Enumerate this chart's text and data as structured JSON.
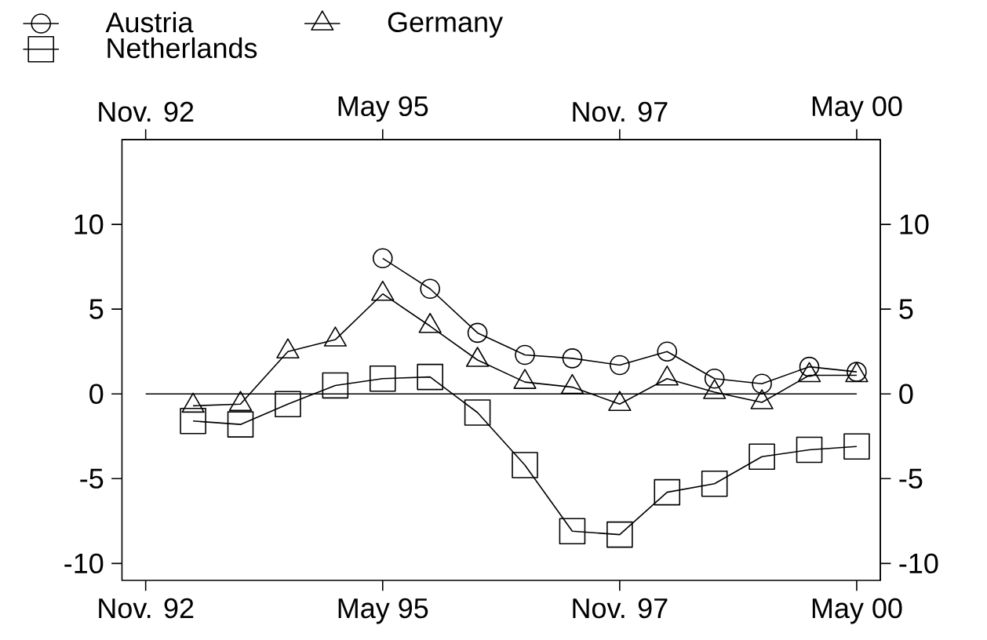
{
  "chart_data": {
    "type": "line",
    "x": [
      "1993-05",
      "1993-11",
      "1994-05",
      "1994-11",
      "1995-05",
      "1995-11",
      "1996-05",
      "1996-11",
      "1997-05",
      "1997-11",
      "1998-05",
      "1998-11",
      "1999-05",
      "1999-11",
      "2000-05"
    ],
    "series": [
      {
        "name": "Austria",
        "color": "#000000",
        "marker": "circle",
        "values": [
          null,
          null,
          null,
          null,
          8.0,
          6.2,
          3.6,
          2.3,
          2.1,
          1.7,
          2.5,
          0.9,
          0.6,
          1.6,
          1.3
        ]
      },
      {
        "name": "Germany",
        "color": "#000000",
        "marker": "triangle",
        "values": [
          -0.7,
          -0.6,
          2.5,
          3.2,
          5.9,
          4.0,
          2.0,
          0.7,
          0.4,
          -0.6,
          0.9,
          0.1,
          -0.5,
          1.1,
          1.1
        ]
      },
      {
        "name": "Netherlands",
        "color": "#000000",
        "marker": "square",
        "values": [
          -1.6,
          -1.8,
          -0.6,
          0.5,
          0.9,
          1.0,
          -1.1,
          -4.2,
          -8.1,
          -8.3,
          -5.8,
          -5.3,
          -3.7,
          -3.3,
          -3.1
        ]
      }
    ],
    "xlim": [
      "1992-08",
      "2000-08"
    ],
    "xticks": [
      {
        "value": "1992-11",
        "label": "Nov. 92"
      },
      {
        "value": "1995-05",
        "label": "May 95"
      },
      {
        "value": "1997-11",
        "label": "Nov. 97"
      },
      {
        "value": "2000-05",
        "label": "May 00"
      }
    ],
    "x2lim": [
      "1992-08",
      "2000-08"
    ],
    "x2ticks": [
      {
        "value": "1992-11",
        "label": "Nov. 92"
      },
      {
        "value": "1995-05",
        "label": "May 95"
      },
      {
        "value": "1997-11",
        "label": "Nov. 97"
      },
      {
        "value": "2000-05",
        "label": "May 00"
      }
    ],
    "ylim": [
      -11,
      15
    ],
    "yticks": [
      -10,
      -5,
      0,
      5,
      10
    ],
    "y2lim": [
      -11,
      15
    ],
    "y2ticks": [
      -10,
      -5,
      0,
      5,
      10
    ],
    "ref_lines": [
      {
        "axis": "y",
        "value": 0,
        "color": "#000000"
      }
    ],
    "legend": "top left"
  }
}
